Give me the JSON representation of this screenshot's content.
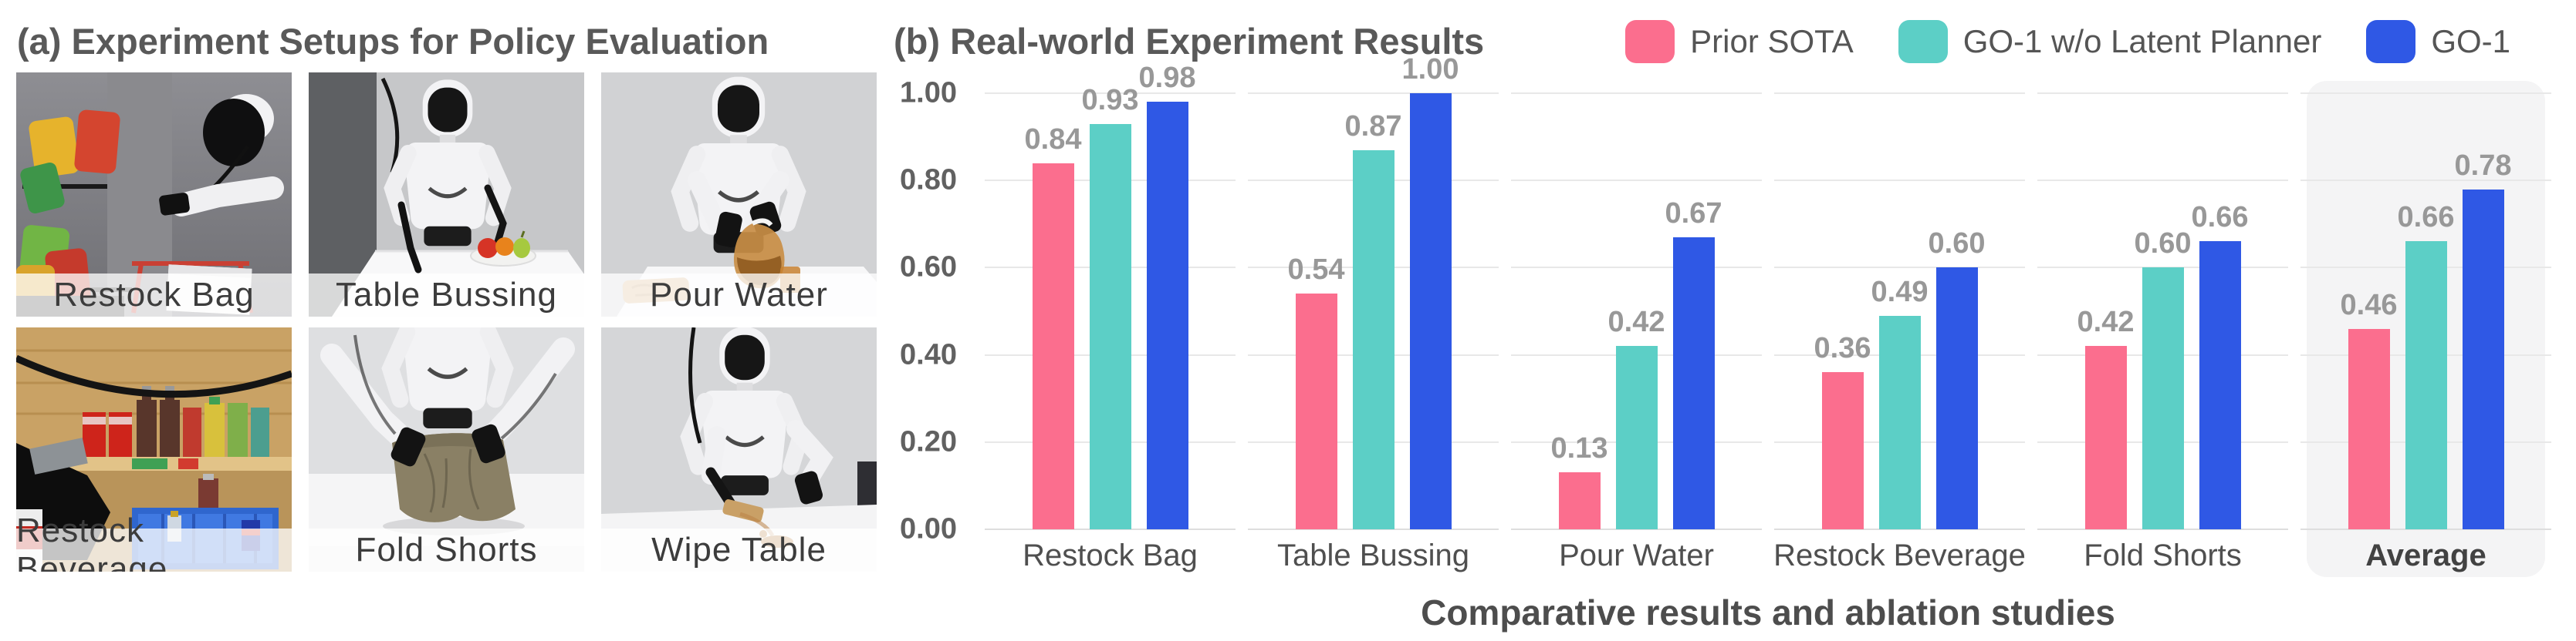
{
  "panel_a": {
    "title": "(a) Experiment Setups for Policy Evaluation",
    "photos": [
      {
        "label": "Restock Bag"
      },
      {
        "label": "Table Bussing"
      },
      {
        "label": "Pour Water"
      },
      {
        "label": "Restock Beverage"
      },
      {
        "label": "Fold Shorts"
      },
      {
        "label": "Wipe Table"
      }
    ]
  },
  "panel_b": {
    "title": "(b) Real-world Experiment Results",
    "caption": "Comparative results and ablation studies",
    "legend": [
      {
        "label": "Prior SOTA",
        "color": "#fb6e8e"
      },
      {
        "label": "GO-1 w/o Latent Planner",
        "color": "#5ccfc6"
      },
      {
        "label": "GO-1",
        "color": "#2f58e5"
      }
    ]
  },
  "chart_data": {
    "type": "bar",
    "title": "(b) Real-world Experiment Results",
    "caption": "Comparative results and ablation studies",
    "categories": [
      "Restock Bag",
      "Table Bussing",
      "Pour Water",
      "Restock Beverage",
      "Fold Shorts",
      "Average"
    ],
    "series": [
      {
        "name": "Prior SOTA",
        "color": "#fb6e8e",
        "values": [
          0.84,
          0.54,
          0.13,
          0.36,
          0.42,
          0.46
        ]
      },
      {
        "name": "GO-1 w/o Latent Planner",
        "color": "#5ccfc6",
        "values": [
          0.93,
          0.87,
          0.42,
          0.49,
          0.6,
          0.66
        ]
      },
      {
        "name": "GO-1",
        "color": "#2f58e5",
        "values": [
          0.98,
          1.0,
          0.67,
          0.6,
          0.66,
          0.78
        ]
      }
    ],
    "xlabel": "",
    "ylabel": "",
    "ylim": [
      0,
      1.0
    ],
    "yticks": [
      "0.00",
      "0.20",
      "0.40",
      "0.60",
      "0.80",
      "1.00"
    ],
    "grid": true,
    "grid_color": "#e8e8e8",
    "legend_position": "top-right",
    "highlighted_category": "Average",
    "highlight_color": "#f4f4f5",
    "value_label_color": "#989898"
  }
}
